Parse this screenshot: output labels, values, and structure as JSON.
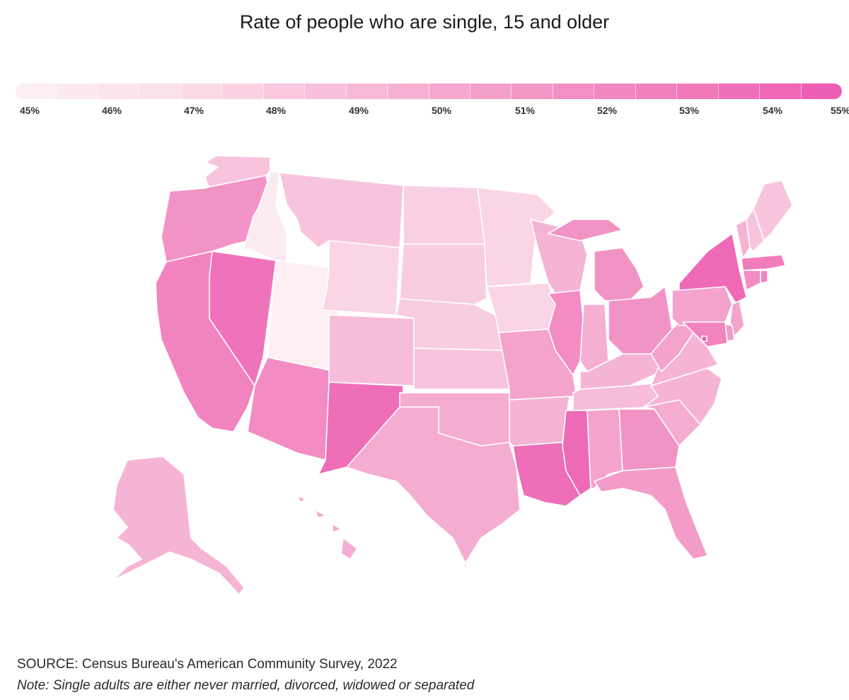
{
  "title": "Rate of people who are single, 15 and older",
  "legend": {
    "ticks": [
      "45%",
      "46%",
      "47%",
      "48%",
      "49%",
      "50%",
      "51%",
      "52%",
      "53%",
      "54%",
      "55%"
    ],
    "min": 45,
    "max": 55,
    "colors": [
      "#fdf0f4",
      "#fbdde9",
      "#f7bcd9",
      "#f39bc9",
      "#f07cbc",
      "#ec58b2"
    ]
  },
  "chart_data": {
    "type": "choropleth",
    "value_unit": "%",
    "range": [
      45,
      55
    ],
    "states": {
      "WA": 48.5,
      "OR": 51.5,
      "CA": 52.5,
      "NV": 53.5,
      "ID": 45.6,
      "UT": 45.1,
      "AZ": 52.0,
      "MT": 48.5,
      "WY": 47.5,
      "CO": 49.0,
      "NM": 53.8,
      "ND": 47.8,
      "SD": 48.0,
      "NE": 48.0,
      "KS": 48.5,
      "OK": 50.0,
      "TX": 50.0,
      "MN": 47.5,
      "IA": 47.5,
      "MO": 50.5,
      "AR": 49.5,
      "LA": 53.8,
      "WI": 49.5,
      "IL": 52.0,
      "MI": 51.5,
      "IN": 49.8,
      "OH": 51.5,
      "KY": 49.5,
      "TN": 49.0,
      "MS": 54.0,
      "AL": 50.5,
      "GA": 51.5,
      "FL": 51.0,
      "SC": 50.0,
      "NC": 49.5,
      "VA": 49.5,
      "WV": 50.5,
      "PA": 50.5,
      "NY": 54.0,
      "ME": 48.5,
      "NH": 48.5,
      "VT": 49.5,
      "MA": 53.0,
      "CT": 52.0,
      "RI": 52.5,
      "NJ": 50.5,
      "DE": 51.0,
      "MD": 52.5,
      "DC": 55.0,
      "AK": 49.5,
      "HI": 50.0
    }
  },
  "footer": {
    "source": "SOURCE: Census Bureau's American Community Survey, 2022",
    "note": "Note: Single adults are either never married, divorced, widowed or separated"
  }
}
